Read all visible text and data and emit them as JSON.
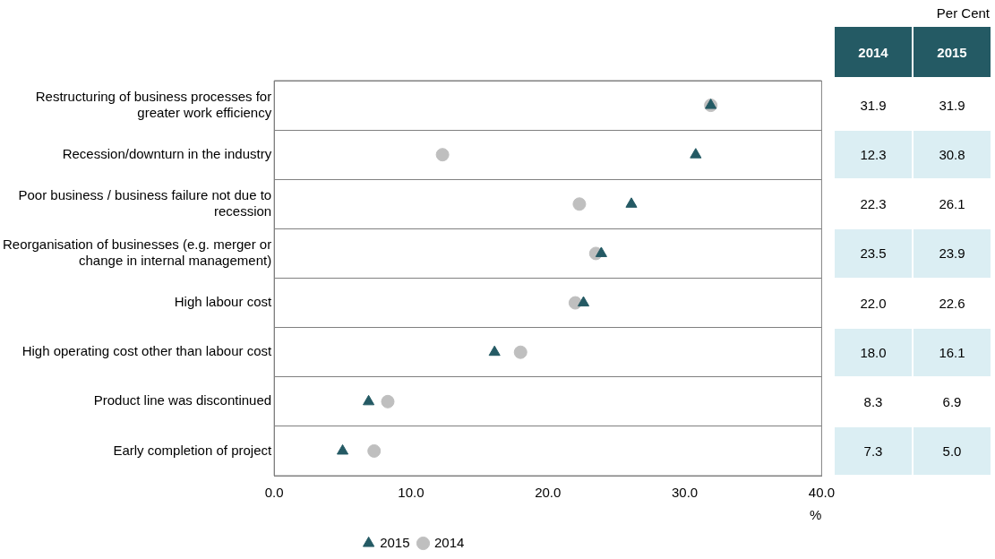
{
  "chart_data": {
    "type": "scatter",
    "orientation": "horizontal",
    "categories": [
      "Restructuring of business processes for greater work efficiency",
      "Recession/downturn in the industry",
      "Poor business / business failure not due to recession",
      "Reorganisation of businesses (e.g. merger or change in internal management)",
      "High labour cost",
      "High operating cost other than labour cost",
      "Product line was discontinued",
      "Early completion of project"
    ],
    "series": [
      {
        "name": "2014",
        "color": "#bfbfbf",
        "marker": "circle",
        "values": [
          31.9,
          12.3,
          22.3,
          23.5,
          22.0,
          18.0,
          8.3,
          7.3
        ],
        "value_labels": [
          "31.9",
          "12.3",
          "22.3",
          "23.5",
          "22.0",
          "18.0",
          "8.3",
          "7.3"
        ]
      },
      {
        "name": "2015",
        "color": "#245a64",
        "marker": "triangle",
        "values": [
          31.9,
          30.8,
          26.1,
          23.9,
          22.6,
          16.1,
          6.9,
          5.0
        ],
        "value_labels": [
          "31.9",
          "30.8",
          "26.1",
          "23.9",
          "22.6",
          "16.1",
          "6.9",
          "5.0"
        ]
      }
    ],
    "xlim": [
      0,
      40
    ],
    "xticks": [
      {
        "value": 0,
        "label": "0.0"
      },
      {
        "value": 10,
        "label": "10.0"
      },
      {
        "value": 20,
        "label": "20.0"
      },
      {
        "value": 30,
        "label": "30.0"
      },
      {
        "value": 40,
        "label": "40.0"
      }
    ],
    "xlabel": "%",
    "annotations": [
      "Per Cent"
    ],
    "grid": "y",
    "legend": "bottom"
  }
}
